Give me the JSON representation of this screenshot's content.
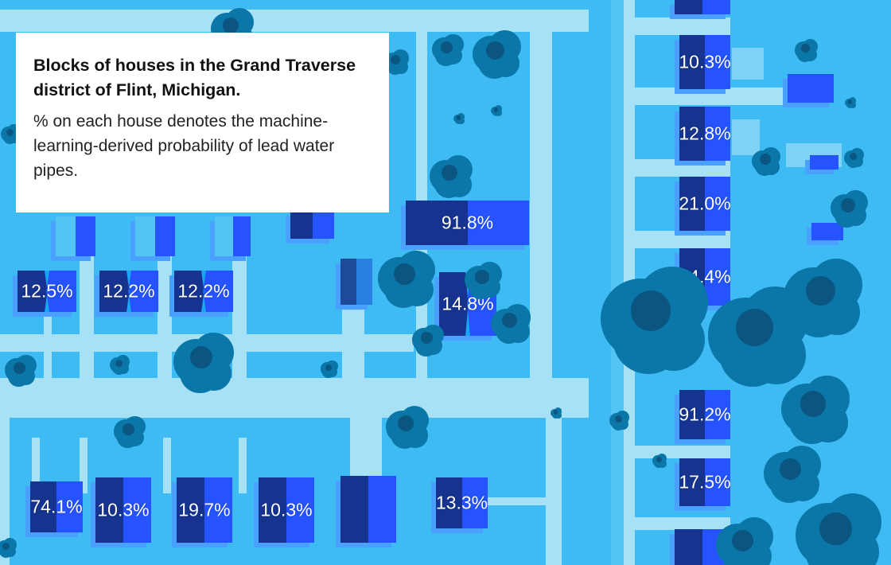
{
  "card": {
    "title": "Blocks of houses in the Grand Traverse district of Flint, Michigan.",
    "description": "% on each house denotes the machine-learning-derived probability of lead water pipes."
  },
  "houses": [
    {
      "label": "12.5%"
    },
    {
      "label": "12.2%"
    },
    {
      "label": "12.2%"
    },
    {
      "label": "91.8%"
    },
    {
      "label": "14.8%"
    },
    {
      "label": "74.1%"
    },
    {
      "label": "10.3%"
    },
    {
      "label": "19.7%"
    },
    {
      "label": "10.3%"
    },
    {
      "label": "13.3%"
    },
    {
      "label": "10.3%"
    },
    {
      "label": "12.8%"
    },
    {
      "label": "21.0%"
    },
    {
      "label": "94.4%"
    },
    {
      "label": "91.2%"
    },
    {
      "label": "17.5%"
    }
  ],
  "colors": {
    "ground": "#3dbbf2",
    "road": "#a6e1f6",
    "house_dark": "#15338f",
    "house_bright": "#2453ff",
    "tree": "#0a77a8"
  }
}
